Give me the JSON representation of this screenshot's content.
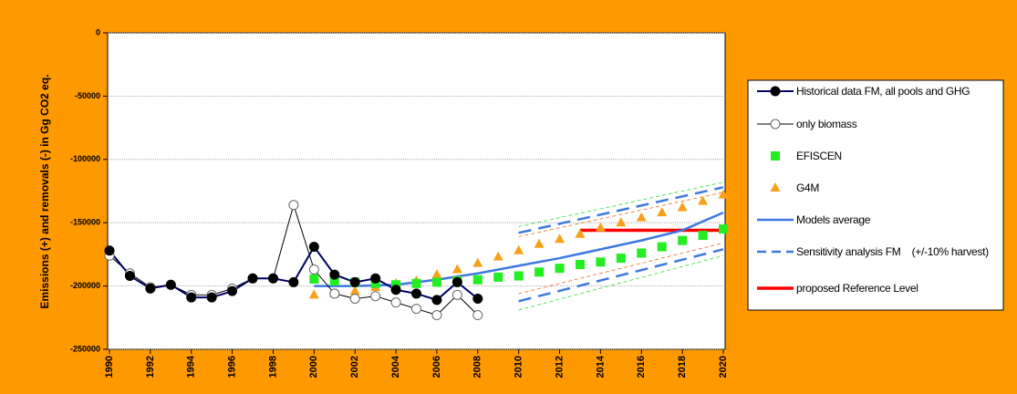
{
  "chart_data": {
    "type": "line",
    "y_label": "Emissions (+) and removals (-) in Gg CO2 eq.",
    "xlim": [
      1990,
      2020
    ],
    "xticks": [
      1990,
      1992,
      1994,
      1996,
      1998,
      2000,
      2002,
      2004,
      2006,
      2008,
      2010,
      2012,
      2014,
      2016,
      2018,
      2020
    ],
    "ylim": [
      -250000,
      0
    ],
    "yticks": [
      -250000,
      -200000,
      -150000,
      -100000,
      -50000,
      0
    ],
    "grid": true,
    "series": [
      {
        "name": "Historical data FM, all pools and GHG",
        "color": "#000066",
        "marker": "filled-circle",
        "width": 2,
        "x": [
          1990,
          1991,
          1992,
          1993,
          1994,
          1995,
          1996,
          1997,
          1998,
          1999,
          2000,
          2001,
          2002,
          2003,
          2004,
          2005,
          2006,
          2007,
          2008
        ],
        "values": [
          -172000,
          -192000,
          -202000,
          -199000,
          -209000,
          -209000,
          -204000,
          -194000,
          -194000,
          -197000,
          -169000,
          -191000,
          -197000,
          -194000,
          -203000,
          -206000,
          -211000,
          -197000,
          -210000
        ]
      },
      {
        "name": "only biomass",
        "color": "#000000",
        "marker": "open-circle",
        "width": 1,
        "x": [
          1990,
          1991,
          1992,
          1993,
          1994,
          1995,
          1996,
          1997,
          1998,
          1999,
          2000,
          2001,
          2002,
          2003,
          2004,
          2005,
          2006,
          2007,
          2008
        ],
        "values": [
          -176000,
          -190000,
          -201000,
          -199000,
          -207000,
          -207000,
          -202000,
          -194000,
          -194000,
          -136000,
          -187000,
          -206000,
          -210000,
          -208000,
          -213000,
          -218000,
          -223000,
          -207000,
          -223000
        ]
      },
      {
        "name": "EFISCEN",
        "color": "#22ee22",
        "marker": "square",
        "width": 0,
        "x": [
          2000,
          2001,
          2002,
          2003,
          2004,
          2005,
          2006,
          2007,
          2008,
          2009,
          2010,
          2011,
          2012,
          2013,
          2014,
          2015,
          2016,
          2017,
          2018,
          2019,
          2020
        ],
        "values": [
          -194500,
          -196000,
          -197000,
          -198000,
          -199000,
          -198000,
          -197000,
          -196000,
          -195000,
          -193000,
          -192000,
          -189000,
          -186000,
          -183000,
          -181000,
          -178000,
          -174000,
          -169000,
          -164000,
          -160000,
          -155000
        ]
      },
      {
        "name": "G4M",
        "color": "#f7a11a",
        "marker": "triangle",
        "width": 0,
        "x": [
          2000,
          2001,
          2002,
          2003,
          2004,
          2005,
          2006,
          2007,
          2008,
          2009,
          2010,
          2011,
          2012,
          2013,
          2014,
          2015,
          2016,
          2017,
          2018,
          2019,
          2020
        ],
        "values": [
          -207000,
          -206000,
          -204000,
          -201000,
          -198000,
          -196000,
          -191000,
          -187000,
          -182000,
          -177000,
          -172000,
          -167000,
          -163000,
          -159000,
          -154000,
          -150000,
          -146000,
          -142000,
          -138000,
          -133000,
          -128000
        ]
      },
      {
        "name": "Models average",
        "color": "#3c78e0",
        "marker": "none",
        "width": 2.5,
        "x": [
          2000,
          2002,
          2004,
          2006,
          2008,
          2010,
          2012,
          2014,
          2016,
          2018,
          2020
        ],
        "values": [
          -200000,
          -200000,
          -199000,
          -195000,
          -190000,
          -184000,
          -178000,
          -171000,
          -164000,
          -156000,
          -142000
        ]
      },
      {
        "name": "Sensitivity analysis FM    (+/-10% harvest)",
        "color": "#3c78e0",
        "marker": "none",
        "width": 2.5,
        "dash": "14 8",
        "x": [
          2010,
          2020
        ],
        "values": [
          -158000,
          -122000
        ]
      },
      {
        "color": "#3c78e0",
        "marker": "none",
        "width": 2.5,
        "dash": "14 8",
        "x": [
          2010,
          2020
        ],
        "values": [
          -212000,
          -171000
        ]
      },
      {
        "name": "proposed Reference Level",
        "color": "#ff0000",
        "marker": "none",
        "width": 3.5,
        "x": [
          2013,
          2020
        ],
        "values": [
          -156000,
          -156000
        ]
      },
      {
        "color": "#33dd33",
        "marker": "none",
        "width": 0.8,
        "dash": "4 3",
        "x": [
          2010,
          2020
        ],
        "values": [
          -153000,
          -118000
        ]
      },
      {
        "color": "#33dd33",
        "marker": "none",
        "width": 0.8,
        "dash": "4 3",
        "x": [
          2010,
          2020
        ],
        "values": [
          -219000,
          -176000
        ]
      },
      {
        "color": "#ee6622",
        "marker": "none",
        "width": 0.8,
        "dash": "4 3",
        "x": [
          2010,
          2020
        ],
        "values": [
          -161000,
          -126000
        ]
      },
      {
        "color": "#ee6622",
        "marker": "none",
        "width": 0.8,
        "dash": "4 3",
        "x": [
          2010,
          2020
        ],
        "values": [
          -206000,
          -166000
        ]
      }
    ]
  }
}
